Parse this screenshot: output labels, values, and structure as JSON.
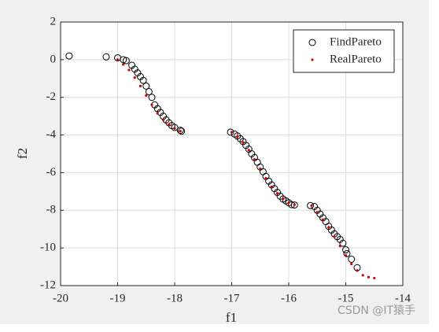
{
  "chart_data": {
    "type": "scatter",
    "xlabel": "f1",
    "ylabel": "f2",
    "xlim": [
      -20,
      -14
    ],
    "ylim": [
      -12,
      2
    ],
    "xticks": [
      -20,
      -19,
      -18,
      -17,
      -16,
      -15,
      -14
    ],
    "yticks": [
      -12,
      -10,
      -8,
      -6,
      -4,
      -2,
      0,
      2
    ],
    "grid": true,
    "legend_location": "northeast",
    "watermark": "CSDN @IT猿手",
    "series": [
      {
        "name": "FindPareto",
        "color": "#000000",
        "marker": "circle",
        "x": [
          -19.85,
          -19.2,
          -19.0,
          -18.9,
          -18.85,
          -18.75,
          -18.7,
          -18.65,
          -18.6,
          -18.55,
          -18.5,
          -18.45,
          -18.4,
          -18.35,
          -18.3,
          -18.25,
          -18.2,
          -18.15,
          -18.1,
          -18.05,
          -18.0,
          -17.9,
          -17.88,
          -17.02,
          -16.95,
          -16.9,
          -16.85,
          -16.8,
          -16.75,
          -16.7,
          -16.65,
          -16.6,
          -16.55,
          -16.5,
          -16.45,
          -16.4,
          -16.35,
          -16.3,
          -16.25,
          -16.2,
          -16.15,
          -16.1,
          -16.05,
          -16.0,
          -15.95,
          -15.9,
          -15.62,
          -15.55,
          -15.5,
          -15.45,
          -15.4,
          -15.35,
          -15.3,
          -15.25,
          -15.2,
          -15.15,
          -15.1,
          -15.05,
          -15.0,
          -14.98,
          -14.9,
          -14.8
        ],
        "y": [
          0.2,
          0.15,
          0.1,
          0.0,
          -0.05,
          -0.3,
          -0.5,
          -0.7,
          -0.9,
          -1.1,
          -1.4,
          -1.7,
          -2.0,
          -2.4,
          -2.6,
          -2.8,
          -3.0,
          -3.2,
          -3.35,
          -3.5,
          -3.6,
          -3.75,
          -3.8,
          -3.85,
          -3.95,
          -4.05,
          -4.2,
          -4.35,
          -4.55,
          -4.75,
          -5.0,
          -5.2,
          -5.45,
          -5.7,
          -5.95,
          -6.2,
          -6.45,
          -6.65,
          -6.85,
          -7.05,
          -7.25,
          -7.4,
          -7.5,
          -7.6,
          -7.7,
          -7.72,
          -7.75,
          -7.8,
          -8.0,
          -8.2,
          -8.4,
          -8.6,
          -8.85,
          -9.05,
          -9.25,
          -9.4,
          -9.55,
          -9.75,
          -10.1,
          -10.3,
          -10.6,
          -11.05
        ]
      },
      {
        "name": "RealPareto",
        "color": "#d40000",
        "marker": "dot",
        "x": [
          -19.0,
          -18.9,
          -18.8,
          -18.7,
          -18.6,
          -18.5,
          -18.4,
          -18.3,
          -18.2,
          -18.1,
          -18.0,
          -17.9,
          -17.0,
          -16.9,
          -16.8,
          -16.7,
          -16.6,
          -16.5,
          -16.4,
          -16.3,
          -16.2,
          -16.1,
          -16.0,
          -15.9,
          -15.6,
          -15.5,
          -15.4,
          -15.3,
          -15.2,
          -15.1,
          -15.0,
          -14.9,
          -14.8,
          -14.7,
          -14.6,
          -14.5
        ],
        "y": [
          0.0,
          -0.25,
          -0.55,
          -0.95,
          -1.4,
          -1.9,
          -2.4,
          -2.85,
          -3.2,
          -3.45,
          -3.65,
          -3.8,
          -3.85,
          -4.1,
          -4.4,
          -4.8,
          -5.3,
          -5.8,
          -6.3,
          -6.75,
          -7.1,
          -7.4,
          -7.6,
          -7.7,
          -7.75,
          -8.1,
          -8.5,
          -8.9,
          -9.4,
          -9.9,
          -10.4,
          -10.85,
          -11.2,
          -11.45,
          -11.55,
          -11.6
        ]
      }
    ]
  }
}
